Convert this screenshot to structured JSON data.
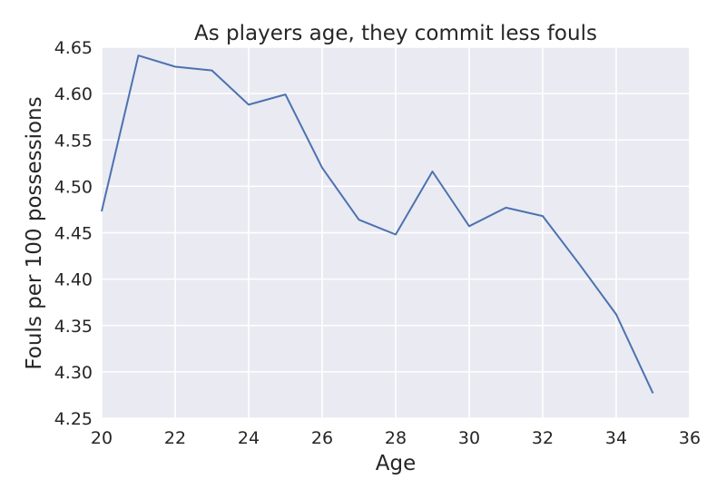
{
  "chart_data": {
    "type": "line",
    "title": "As players age, they commit less fouls",
    "xlabel": "Age",
    "ylabel": "Fouls per 100 possessions",
    "xlim": [
      20,
      36
    ],
    "ylim": [
      4.25,
      4.65
    ],
    "xticks": [
      "20",
      "22",
      "24",
      "26",
      "28",
      "30",
      "32",
      "34",
      "36"
    ],
    "yticks": [
      "4.25",
      "4.30",
      "4.35",
      "4.40",
      "4.45",
      "4.50",
      "4.55",
      "4.60",
      "4.65"
    ],
    "grid": true,
    "colors": {
      "background": "#eaeaf2",
      "grid": "#ffffff",
      "line": "#4c72b0"
    },
    "series": [
      {
        "x": [
          20,
          21,
          22,
          23,
          24,
          25,
          26,
          27,
          28,
          29,
          30,
          31,
          32,
          33,
          34,
          35
        ],
        "y": [
          4.473,
          4.641,
          4.629,
          4.625,
          4.588,
          4.599,
          4.52,
          4.464,
          4.448,
          4.516,
          4.457,
          4.477,
          4.468,
          4.416,
          4.362,
          4.277
        ]
      }
    ]
  }
}
